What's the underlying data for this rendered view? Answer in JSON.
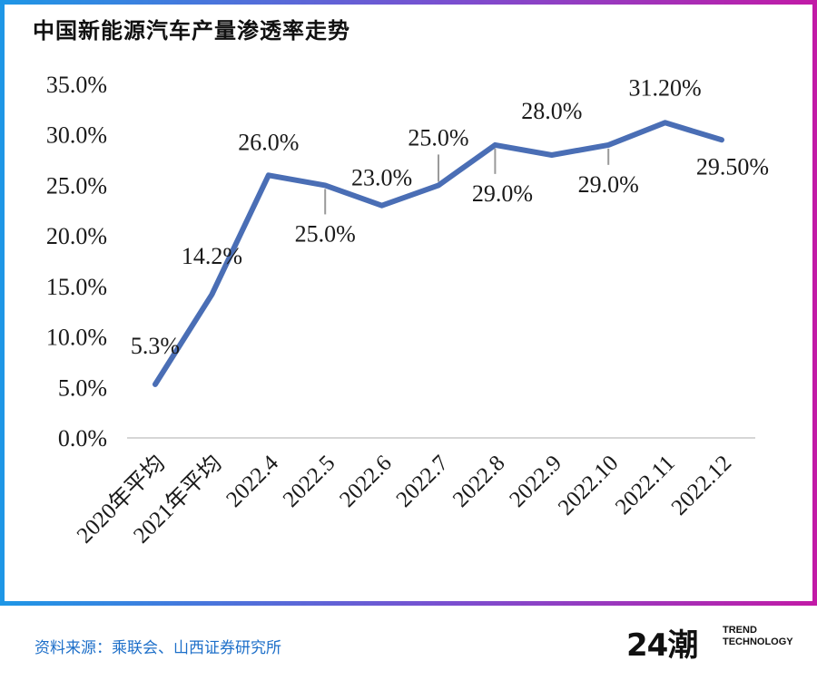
{
  "title": "中国新能源汽车产量渗透率走势",
  "source": "资料来源：乘联会、山西证券研究所",
  "logo": {
    "mark": "24潮",
    "line1": "TREND",
    "line2": "TECHNOLOGY"
  },
  "colors": {
    "line": "#4a6eb5",
    "frame_left": "#1e97e6",
    "frame_right": "#c21aa6",
    "source": "#1d6fc9"
  },
  "chart_data": {
    "type": "line",
    "title": "中国新能源汽车产量渗透率走势",
    "categories": [
      "2020年平均",
      "2021年平均",
      "2022.4",
      "2022.5",
      "2022.6",
      "2022.7",
      "2022.8",
      "2022.9",
      "2022.10",
      "2022.11",
      "2022.12"
    ],
    "values": [
      5.3,
      14.2,
      26.0,
      25.0,
      23.0,
      25.0,
      29.0,
      28.0,
      29.0,
      31.2,
      29.5
    ],
    "data_labels": [
      "5.3%",
      "14.2%",
      "26.0%",
      "25.0%",
      "23.0%",
      "25.0%",
      "29.0%",
      "28.0%",
      "29.0%",
      "31.20%",
      "29.50%"
    ],
    "y_ticks": [
      "0.0%",
      "5.0%",
      "10.0%",
      "15.0%",
      "20.0%",
      "25.0%",
      "30.0%",
      "35.0%"
    ],
    "ylim": [
      0,
      35
    ],
    "grid": false,
    "xlabel": "",
    "ylabel": ""
  }
}
